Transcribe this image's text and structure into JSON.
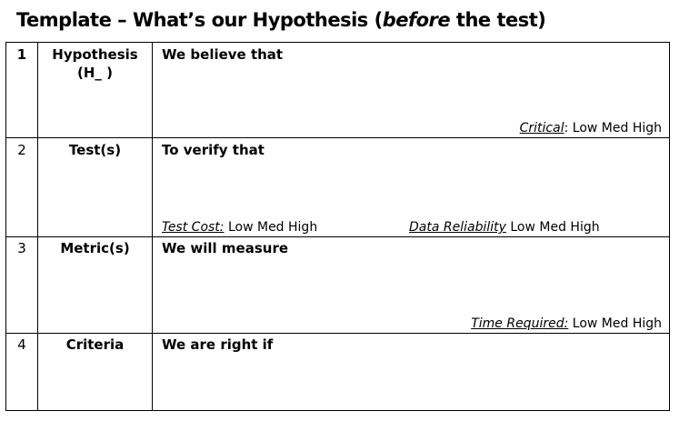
{
  "title": {
    "prefix": "Template – What’s our Hypothesis (",
    "emphasis": "before",
    "suffix": " the test)"
  },
  "rows": [
    {
      "number": "1",
      "label": "Hypothesis (H_ )",
      "prompt": "We believe that",
      "ratings": [
        {
          "key": "Critical",
          "sep": ": ",
          "scale": "Low Med High"
        }
      ]
    },
    {
      "number": "2",
      "label": "Test(s)",
      "prompt": "To verify that",
      "ratings": [
        {
          "key": "Test Cost:",
          "sep": " ",
          "scale": "Low Med High"
        },
        {
          "key": "Data Reliability",
          "sep": " ",
          "scale": "Low Med High"
        }
      ]
    },
    {
      "number": "3",
      "label": "Metric(s)",
      "prompt": "We will measure",
      "ratings": [
        {
          "key": "Time Required:",
          "sep": " ",
          "scale": "Low Med High"
        }
      ]
    },
    {
      "number": "4",
      "label": "Criteria",
      "prompt": "We are right if",
      "ratings": []
    }
  ]
}
